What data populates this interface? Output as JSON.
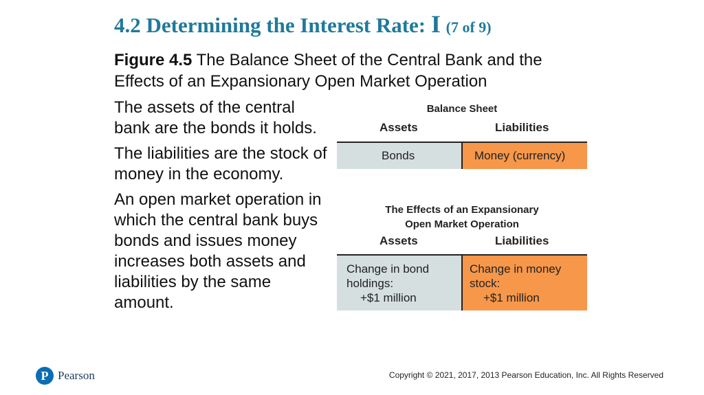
{
  "title": {
    "main": "4.2 Determining the Interest Rate:",
    "roman": "I",
    "suffix": "(7 of 9)"
  },
  "figure": {
    "label": "Figure 4.5",
    "caption": "The Balance Sheet of the Central Bank and the Effects of an Expansionary Open Market Operation"
  },
  "bullets": [
    "The assets of the central bank are the bonds it holds.",
    "The liabilities are the stock of money in the economy.",
    "An open market operation in which the central bank buys bonds and issues money increases both assets and liabilities by the same amount."
  ],
  "balance_sheet": {
    "title": "Balance Sheet",
    "assets_header": "Assets",
    "liabilities_header": "Liabilities",
    "asset": "Bonds",
    "liability": "Money (currency)"
  },
  "effects": {
    "title_line1": "The Effects of an Expansionary",
    "title_line2": "Open Market Operation",
    "assets_header": "Assets",
    "liabilities_header": "Liabilities",
    "asset_line1": "Change in bond",
    "asset_line2": "holdings:",
    "asset_line3": "+$1 million",
    "liability_line1": "Change in money",
    "liability_line2": "stock:",
    "liability_line3": "+$1 million"
  },
  "colors": {
    "title": "#1f7a9a",
    "asset_cell": "#d5dfe0",
    "liability_cell": "#f6974a",
    "logo": "#0b6db3"
  },
  "footer": {
    "logo_letter": "P",
    "logo_text": "Pearson",
    "copyright": "Copyright © 2021, 2017, 2013 Pearson Education, Inc. All Rights Reserved"
  }
}
